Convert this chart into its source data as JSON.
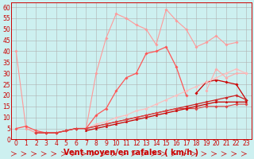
{
  "background_color": "#cdf0f0",
  "grid_color": "#b0b0b0",
  "x_values": [
    0,
    1,
    2,
    3,
    4,
    5,
    6,
    7,
    8,
    9,
    10,
    11,
    12,
    13,
    14,
    15,
    16,
    17,
    18,
    19,
    20,
    21,
    22,
    23
  ],
  "ylim": [
    0,
    62
  ],
  "yticks": [
    0,
    5,
    10,
    15,
    20,
    25,
    30,
    35,
    40,
    45,
    50,
    55,
    60
  ],
  "xlabel": "Vent moyen/en rafales ( km/h )",
  "xlabel_size": 7,
  "xlabel_color": "#cc0000",
  "tick_label_size": 5.5,
  "tick_color": "#cc0000",
  "series": [
    {
      "color": "#ff9999",
      "lw": 0.8,
      "marker": "D",
      "ms": 1.8,
      "y": [
        40,
        5,
        3,
        3,
        3,
        4,
        5,
        5,
        30,
        46,
        57,
        55,
        52,
        50,
        43,
        59,
        54,
        50,
        42,
        44,
        47,
        43,
        44,
        null
      ]
    },
    {
      "color": "#ff5555",
      "lw": 0.9,
      "marker": "D",
      "ms": 1.8,
      "y": [
        5,
        6,
        4,
        3,
        3,
        4,
        5,
        5,
        11,
        14,
        22,
        28,
        30,
        39,
        40,
        42,
        33,
        20,
        null,
        null,
        null,
        null,
        null,
        null
      ]
    },
    {
      "color": "#cc0000",
      "lw": 0.9,
      "marker": "D",
      "ms": 1.8,
      "y": [
        null,
        null,
        null,
        null,
        null,
        null,
        null,
        null,
        null,
        null,
        null,
        null,
        null,
        null,
        null,
        null,
        null,
        null,
        21,
        26,
        27,
        26,
        25,
        18
      ]
    },
    {
      "color": "#ffaaaa",
      "lw": 0.8,
      "marker": "D",
      "ms": 1.8,
      "y": [
        null,
        null,
        null,
        null,
        null,
        null,
        null,
        null,
        null,
        null,
        null,
        null,
        null,
        null,
        null,
        null,
        null,
        null,
        null,
        22,
        32,
        28,
        30,
        30
      ]
    },
    {
      "color": "#ffbbbb",
      "lw": 0.8,
      "marker": "D",
      "ms": 1.8,
      "y": [
        null,
        null,
        3,
        3,
        3,
        4,
        5,
        5,
        7,
        8,
        10,
        11,
        13,
        14,
        16,
        18,
        20,
        22,
        24,
        26,
        28,
        30,
        32,
        30
      ]
    },
    {
      "color": "#cc2222",
      "lw": 0.9,
      "marker": "D",
      "ms": 1.8,
      "y": [
        null,
        null,
        3,
        3,
        3,
        4,
        5,
        5,
        6,
        7,
        8,
        9,
        10,
        11,
        12,
        13,
        14,
        15,
        16,
        17,
        18,
        19,
        20,
        18
      ]
    },
    {
      "color": "#dd4444",
      "lw": 0.8,
      "marker": "D",
      "ms": 1.8,
      "y": [
        null,
        null,
        3,
        3,
        3,
        4,
        5,
        5,
        6,
        7,
        8,
        9,
        10,
        11,
        12,
        13,
        14,
        14,
        14,
        15,
        15,
        15,
        16,
        16
      ]
    },
    {
      "color": "#cc0000",
      "lw": 0.9,
      "marker": "^",
      "ms": 1.8,
      "y": [
        null,
        null,
        null,
        null,
        null,
        null,
        null,
        4,
        5,
        6,
        7,
        8,
        9,
        10,
        11,
        12,
        13,
        14,
        15,
        16,
        17,
        17,
        17,
        17
      ]
    }
  ]
}
